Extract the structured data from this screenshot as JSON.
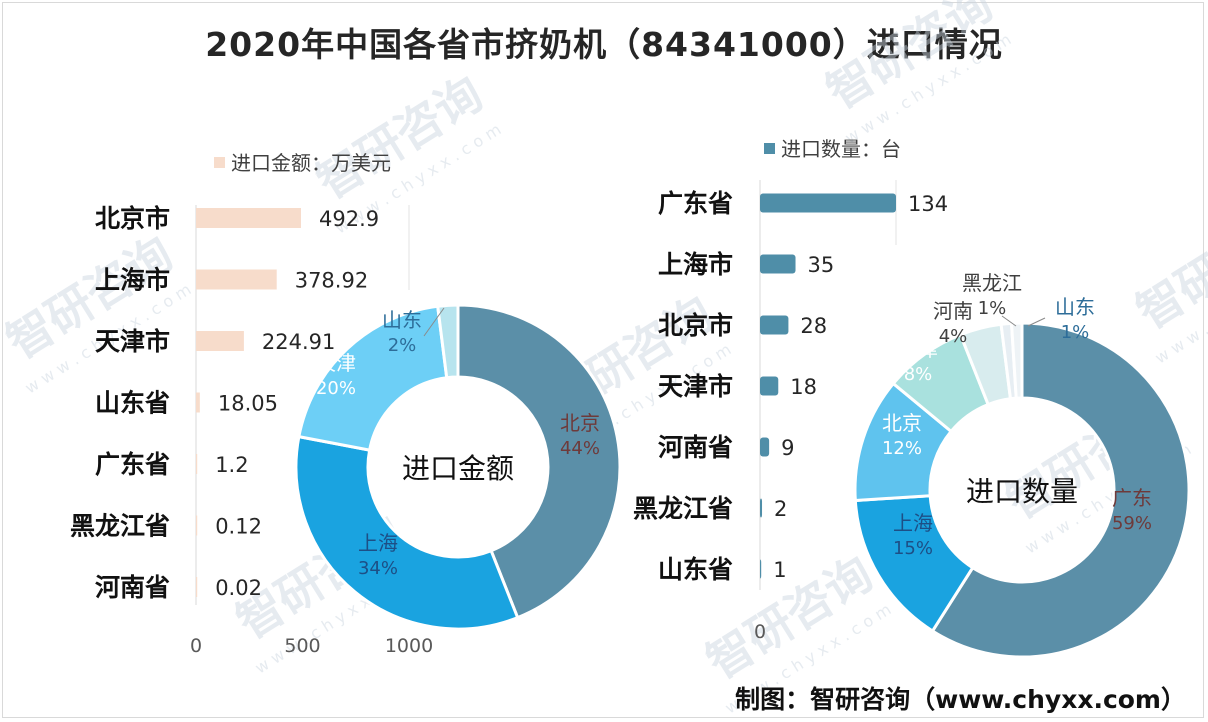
{
  "title": "2020年中国各省市挤奶机（84341000）进口情况",
  "credit": "制图：智研咨询（www.chyxx.com）",
  "watermark": {
    "brand": "智研咨询",
    "url": "w w w . c h y x x . c o m"
  },
  "chart_data": [
    {
      "type": "bar",
      "orientation": "horizontal",
      "legend": "进口金额：万美元",
      "color": "#f7dccb",
      "categories": [
        "北京市",
        "上海市",
        "天津市",
        "山东省",
        "广东省",
        "黑龙江省",
        "河南省"
      ],
      "values": [
        492.9,
        378.92,
        224.91,
        18.05,
        1.2,
        0.12,
        0.02
      ],
      "value_labels": [
        "492.9",
        "378.92",
        "224.91",
        "18.05",
        "1.2",
        "0.12",
        "0.02"
      ],
      "xlim": [
        0,
        1000
      ],
      "xticks": [
        "0",
        "500",
        "1000"
      ]
    },
    {
      "type": "pie",
      "style": "donut",
      "center_label": "进口金额",
      "labels": [
        "北京",
        "上海",
        "天津",
        "山东"
      ],
      "percent_labels": [
        "44%",
        "34%",
        "20%",
        "2%"
      ],
      "values": [
        44,
        34,
        20,
        2
      ],
      "colors": [
        "#5b8fa8",
        "#1aa3e0",
        "#6dcff6",
        "#b7e4ee"
      ]
    },
    {
      "type": "bar",
      "orientation": "horizontal",
      "legend": "进口数量：台",
      "color": "#4f8ea8",
      "categories": [
        "广东省",
        "上海市",
        "北京市",
        "天津市",
        "河南省",
        "黑龙江省",
        "山东省"
      ],
      "values": [
        134,
        35,
        28,
        18,
        9,
        2,
        1
      ],
      "value_labels": [
        "134",
        "35",
        "28",
        "18",
        "9",
        "2",
        "1"
      ],
      "xticks": [
        "0"
      ]
    },
    {
      "type": "pie",
      "style": "donut",
      "center_label": "进口数量",
      "labels": [
        "广东",
        "上海",
        "北京",
        "天津",
        "河南",
        "黑龙江",
        "山东"
      ],
      "percent_labels": [
        "59%",
        "15%",
        "12%",
        "8%",
        "4%",
        "1%",
        "1%"
      ],
      "values": [
        59,
        15,
        12,
        8,
        4,
        1,
        1
      ],
      "colors": [
        "#5b8fa8",
        "#1aa3e0",
        "#5fc3ee",
        "#a9e1de",
        "#d8ecee",
        "#e7eef3",
        "#eef3f6"
      ]
    }
  ]
}
